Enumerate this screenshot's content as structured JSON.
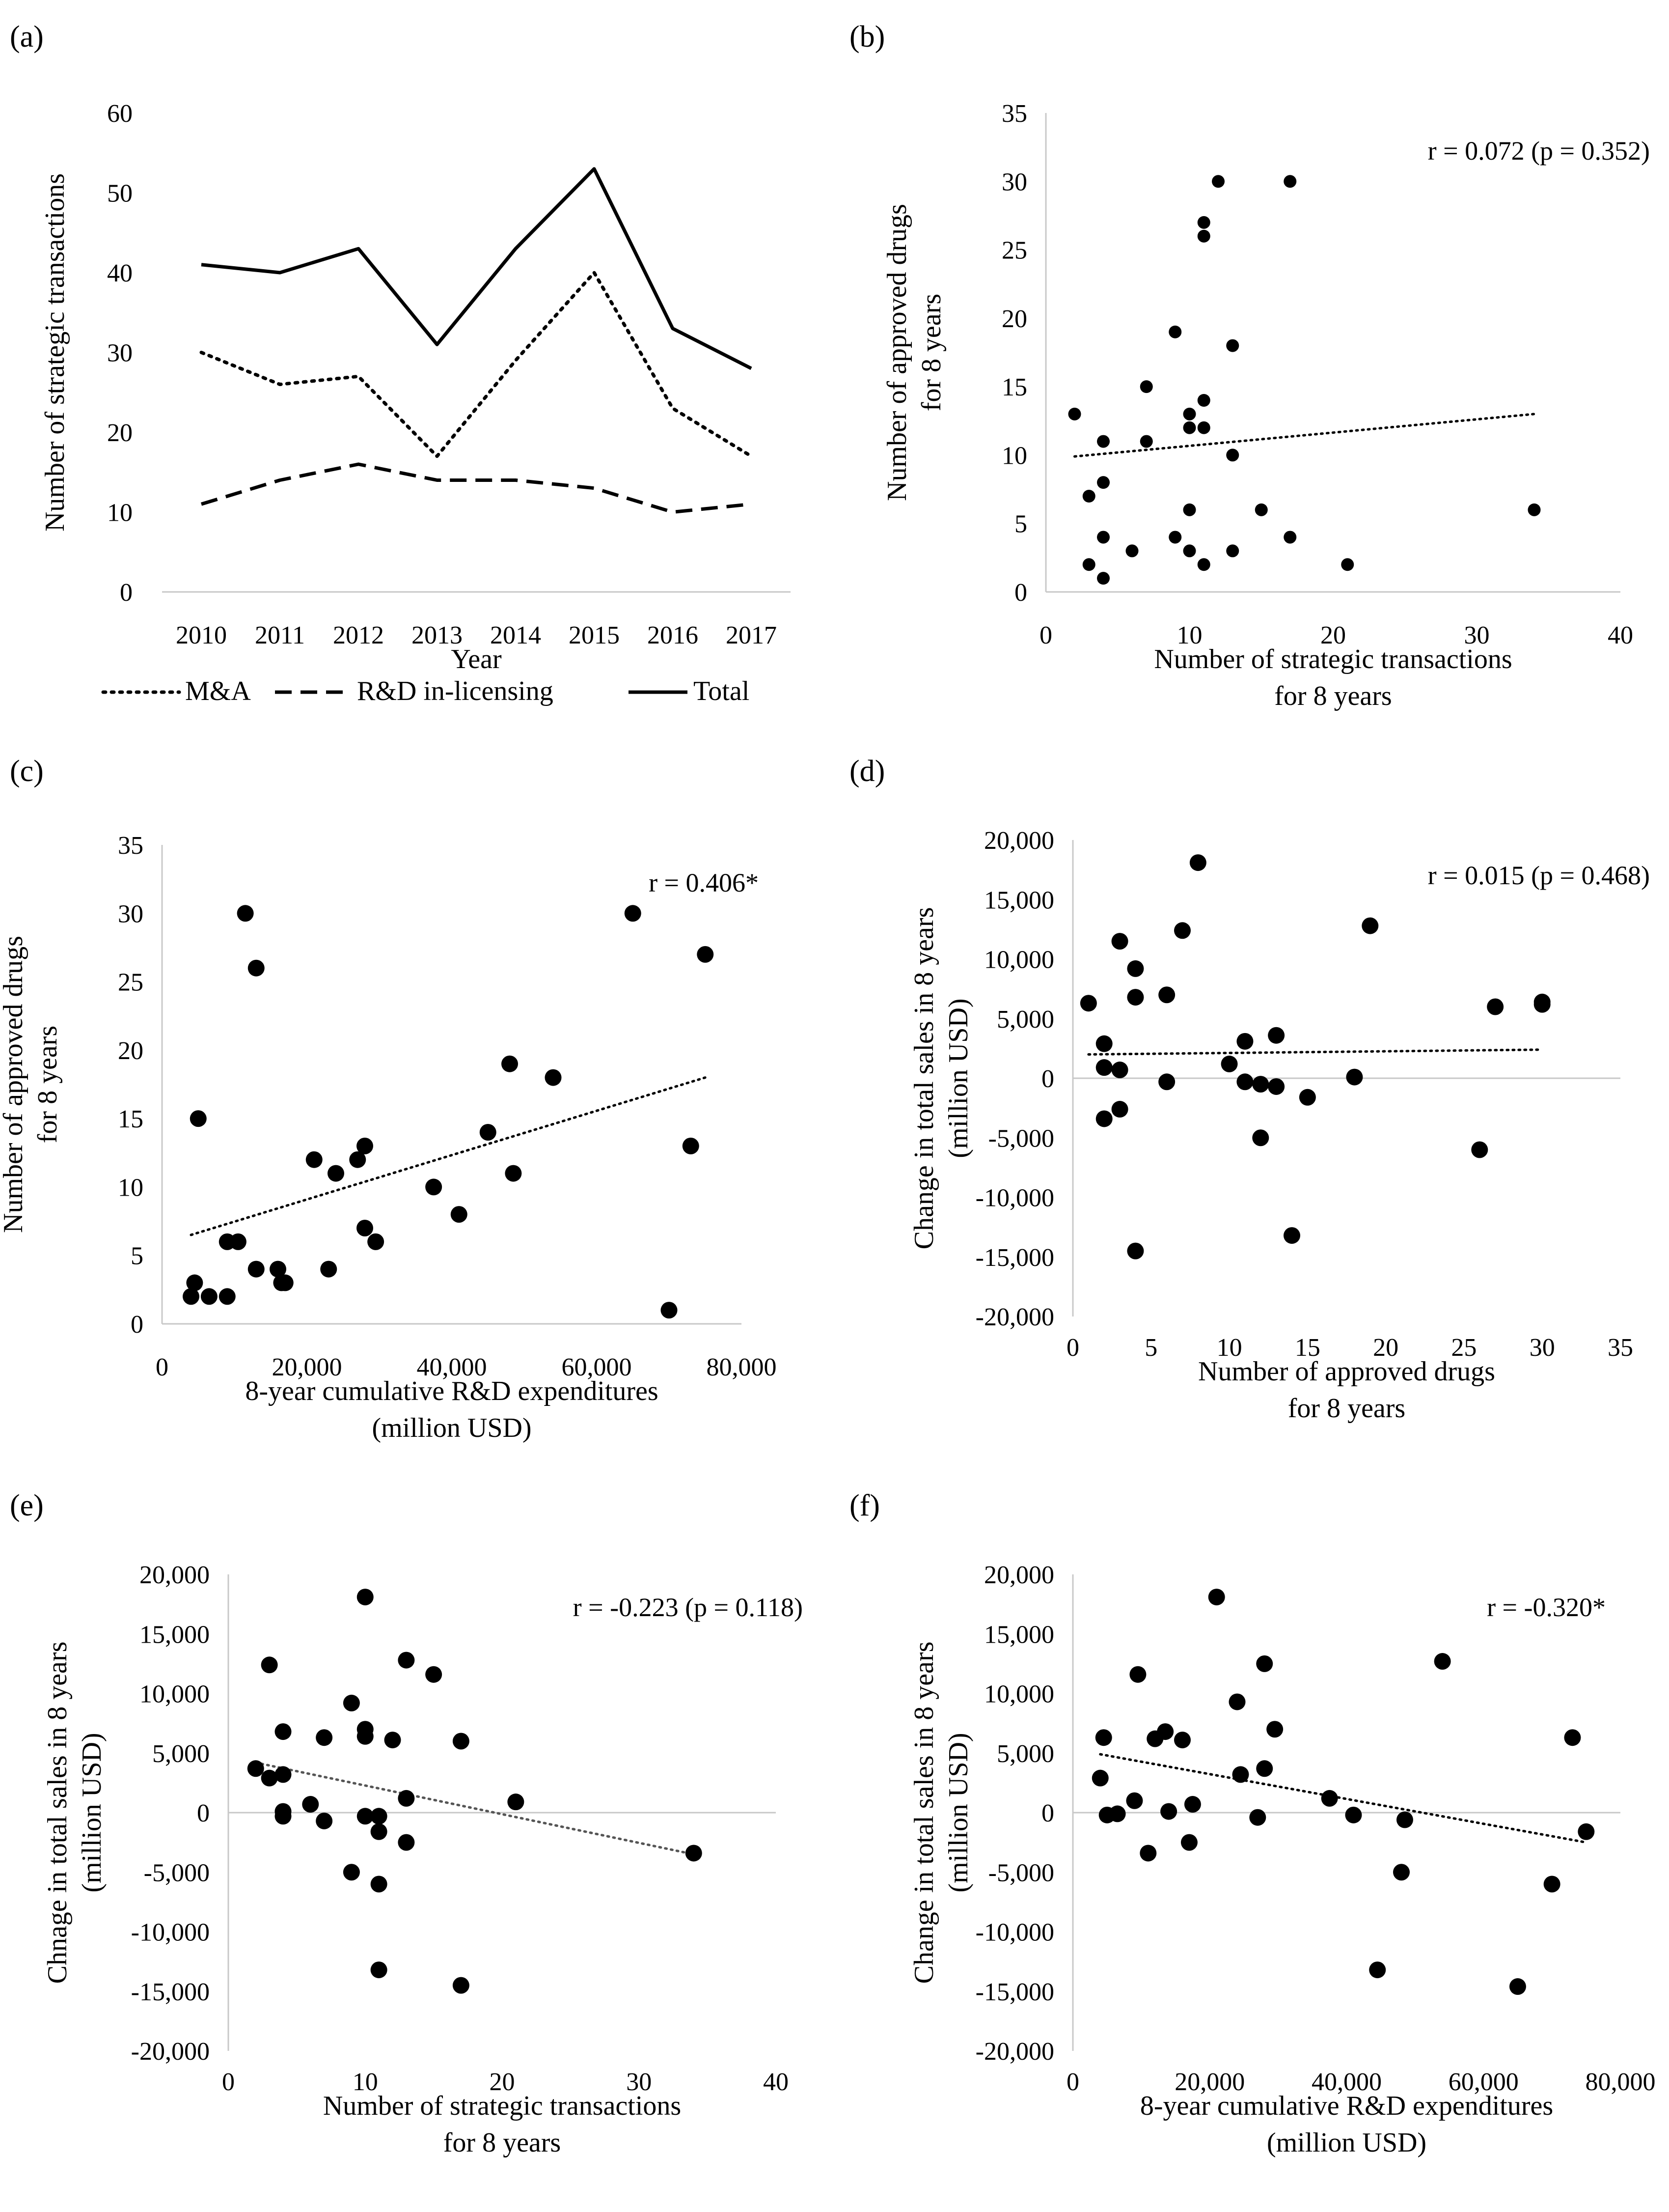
{
  "chart_data": [
    {
      "id": "a",
      "panel_label": "(a)",
      "type": "line",
      "title": "",
      "xlabel": "Year",
      "ylabel": "Number of strategic transactions",
      "categories": [
        "2010",
        "2011",
        "2012",
        "2013",
        "2014",
        "2015",
        "2016",
        "2017"
      ],
      "ylim": [
        0,
        60
      ],
      "yticks": [
        0,
        10,
        20,
        30,
        40,
        50,
        60
      ],
      "legend_position": "bottom",
      "grid": false,
      "series": [
        {
          "name": "M&A",
          "style": "dotted",
          "values": [
            30,
            26,
            27,
            17,
            29,
            40,
            23,
            17
          ]
        },
        {
          "name": "R&D in-licensing",
          "style": "dashed",
          "values": [
            11,
            14,
            16,
            14,
            14,
            13,
            10,
            11
          ]
        },
        {
          "name": "Total",
          "style": "solid",
          "values": [
            41,
            40,
            43,
            31,
            43,
            53,
            33,
            28
          ]
        }
      ]
    },
    {
      "id": "b",
      "panel_label": "(b)",
      "type": "scatter",
      "xlabel": [
        "Number of strategic transactions",
        "for 8 years"
      ],
      "ylabel": [
        "Number of approved drugs",
        "for 8 years"
      ],
      "xlim": [
        0,
        40
      ],
      "xticks": [
        0,
        10,
        20,
        30,
        40
      ],
      "ylim": [
        0,
        35
      ],
      "yticks": [
        0,
        5,
        10,
        15,
        20,
        25,
        30,
        35
      ],
      "annotation": "r = 0.072 (p = 0.352)",
      "trendline": {
        "x": [
          2,
          34
        ],
        "y": [
          9.9,
          13.0
        ]
      },
      "points": [
        [
          2,
          13
        ],
        [
          3,
          7
        ],
        [
          3,
          2
        ],
        [
          4,
          11
        ],
        [
          4,
          8
        ],
        [
          4,
          4
        ],
        [
          4,
          1
        ],
        [
          6,
          3
        ],
        [
          7,
          15
        ],
        [
          7,
          11
        ],
        [
          9,
          19
        ],
        [
          9,
          4
        ],
        [
          10,
          13
        ],
        [
          10,
          12
        ],
        [
          10,
          6
        ],
        [
          10,
          3
        ],
        [
          11,
          27
        ],
        [
          11,
          26
        ],
        [
          11,
          14
        ],
        [
          11,
          12
        ],
        [
          11,
          2
        ],
        [
          12,
          30
        ],
        [
          13,
          18
        ],
        [
          13,
          10
        ],
        [
          13,
          3
        ],
        [
          15,
          6
        ],
        [
          17,
          30
        ],
        [
          17,
          4
        ],
        [
          21,
          2
        ],
        [
          34,
          6
        ]
      ]
    },
    {
      "id": "c",
      "panel_label": "(c)",
      "type": "scatter",
      "xlabel": [
        "8-year cumulative R&D expenditures",
        "(million USD)"
      ],
      "ylabel": [
        "Number of approved drugs",
        "for 8 years"
      ],
      "xlim": [
        0,
        80000
      ],
      "xticks": [
        0,
        20000,
        40000,
        60000,
        80000
      ],
      "xtick_labels": [
        "0",
        "20,000",
        "40,000",
        "60,000",
        "80,000"
      ],
      "ylim": [
        0,
        35
      ],
      "yticks": [
        0,
        5,
        10,
        15,
        20,
        25,
        30,
        35
      ],
      "annotation": "r = 0.406*",
      "trendline": {
        "x": [
          4000,
          75000
        ],
        "y": [
          6.5,
          18.0
        ]
      },
      "points": [
        [
          4000,
          2
        ],
        [
          4500,
          3
        ],
        [
          5000,
          15
        ],
        [
          6500,
          2
        ],
        [
          9000,
          6
        ],
        [
          9000,
          2
        ],
        [
          10500,
          6
        ],
        [
          11500,
          30
        ],
        [
          13000,
          26
        ],
        [
          13000,
          4
        ],
        [
          16000,
          4
        ],
        [
          16500,
          3
        ],
        [
          17000,
          3
        ],
        [
          21000,
          12
        ],
        [
          23000,
          4
        ],
        [
          24000,
          11
        ],
        [
          27000,
          12
        ],
        [
          28000,
          13
        ],
        [
          28000,
          7
        ],
        [
          29500,
          6
        ],
        [
          37500,
          10
        ],
        [
          41000,
          8
        ],
        [
          45000,
          14
        ],
        [
          48000,
          19
        ],
        [
          48500,
          11
        ],
        [
          54000,
          18
        ],
        [
          65000,
          30
        ],
        [
          70000,
          1
        ],
        [
          73000,
          13
        ],
        [
          75000,
          27
        ]
      ]
    },
    {
      "id": "d",
      "panel_label": "(d)",
      "type": "scatter",
      "xlabel": [
        "Number of approved drugs",
        "for 8 years"
      ],
      "ylabel": [
        "Change in total sales in 8 years",
        "(million USD)"
      ],
      "xlim": [
        0,
        35
      ],
      "xticks": [
        0,
        5,
        10,
        15,
        20,
        25,
        30,
        35
      ],
      "ylim": [
        -20000,
        20000
      ],
      "yticks": [
        -20000,
        -15000,
        -10000,
        -5000,
        0,
        5000,
        10000,
        15000,
        20000
      ],
      "ytick_labels": [
        "-20,000",
        "-15,000",
        "-10,000",
        "-5,000",
        "0",
        "5,000",
        "10,000",
        "15,000",
        "20,000"
      ],
      "annotation": "r = 0.015 (p = 0.468)",
      "trendline": {
        "x": [
          1,
          30
        ],
        "y": [
          2000,
          2400
        ]
      },
      "points": [
        [
          1,
          6300
        ],
        [
          2,
          2900
        ],
        [
          2,
          900
        ],
        [
          2,
          -3400
        ],
        [
          3,
          11500
        ],
        [
          3,
          700
        ],
        [
          3,
          -2600
        ],
        [
          4,
          9200
        ],
        [
          4,
          6800
        ],
        [
          4,
          -14500
        ],
        [
          6,
          7000
        ],
        [
          6,
          -300
        ],
        [
          7,
          12400
        ],
        [
          8,
          18100
        ],
        [
          10,
          1200
        ],
        [
          11,
          3100
        ],
        [
          11,
          -300
        ],
        [
          12,
          -500
        ],
        [
          12,
          -5000
        ],
        [
          13,
          3600
        ],
        [
          13,
          -700
        ],
        [
          14,
          -13200
        ],
        [
          15,
          -1600
        ],
        [
          18,
          100
        ],
        [
          19,
          12800
        ],
        [
          26,
          -6000
        ],
        [
          27,
          6000
        ],
        [
          30,
          6400
        ],
        [
          30,
          6200
        ]
      ]
    },
    {
      "id": "e",
      "panel_label": "(e)",
      "type": "scatter",
      "xlabel": [
        "Number of strategic transactions",
        "for 8 years"
      ],
      "ylabel": [
        "Chnage in total sales in 8 years",
        "(million USD)"
      ],
      "xlim": [
        0,
        40
      ],
      "xticks": [
        0,
        10,
        20,
        30,
        40
      ],
      "ylim": [
        -20000,
        20000
      ],
      "yticks": [
        -20000,
        -15000,
        -10000,
        -5000,
        0,
        5000,
        10000,
        15000,
        20000
      ],
      "ytick_labels": [
        "-20,000",
        "-15,000",
        "-10,000",
        "-5,000",
        "0",
        "5,000",
        "10,000",
        "15,000",
        "20,000"
      ],
      "annotation": "r = -0.223 (p = 0.118)",
      "trendline": {
        "x": [
          2,
          34
        ],
        "y": [
          4200,
          -3500
        ]
      },
      "points": [
        [
          2,
          3700
        ],
        [
          3,
          12400
        ],
        [
          3,
          2900
        ],
        [
          4,
          6800
        ],
        [
          4,
          3200
        ],
        [
          4,
          100
        ],
        [
          4,
          -300
        ],
        [
          6,
          700
        ],
        [
          7,
          6300
        ],
        [
          7,
          -700
        ],
        [
          9,
          9200
        ],
        [
          9,
          -5000
        ],
        [
          10,
          18100
        ],
        [
          10,
          7000
        ],
        [
          10,
          6400
        ],
        [
          10,
          -300
        ],
        [
          11,
          -300
        ],
        [
          11,
          -1600
        ],
        [
          11,
          -6000
        ],
        [
          11,
          -13200
        ],
        [
          12,
          6100
        ],
        [
          13,
          12800
        ],
        [
          13,
          1200
        ],
        [
          13,
          -2500
        ],
        [
          15,
          11600
        ],
        [
          17,
          6000
        ],
        [
          17,
          -14500
        ],
        [
          21,
          900
        ],
        [
          34,
          -3400
        ]
      ]
    },
    {
      "id": "f",
      "panel_label": "(f)",
      "type": "scatter",
      "xlabel": [
        "8-year cumulative R&D expenditures",
        "(million USD)"
      ],
      "ylabel": [
        "Change in total sales in 8 years",
        "(million USD)"
      ],
      "xlim": [
        0,
        80000
      ],
      "xticks": [
        0,
        20000,
        40000,
        60000,
        80000
      ],
      "xtick_labels": [
        "0",
        "20,000",
        "40,000",
        "60,000",
        "80,000"
      ],
      "ylim": [
        -20000,
        20000
      ],
      "yticks": [
        -20000,
        -15000,
        -10000,
        -5000,
        0,
        5000,
        10000,
        15000,
        20000
      ],
      "ytick_labels": [
        "-20,000",
        "-15,000",
        "-10,000",
        "-5,000",
        "0",
        "5,000",
        "10,000",
        "15,000",
        "20,000"
      ],
      "annotation": "r = -0.320*",
      "trendline": {
        "x": [
          4000,
          75000
        ],
        "y": [
          4900,
          -2500
        ]
      },
      "points": [
        [
          4000,
          2900
        ],
        [
          4500,
          6300
        ],
        [
          5000,
          -200
        ],
        [
          6500,
          -100
        ],
        [
          9000,
          1000
        ],
        [
          9500,
          11600
        ],
        [
          11000,
          -3400
        ],
        [
          12000,
          6200
        ],
        [
          13500,
          6800
        ],
        [
          14000,
          100
        ],
        [
          16000,
          6100
        ],
        [
          17000,
          -2500
        ],
        [
          17500,
          700
        ],
        [
          21000,
          18100
        ],
        [
          24000,
          9300
        ],
        [
          24500,
          3200
        ],
        [
          27000,
          -400
        ],
        [
          28000,
          12500
        ],
        [
          28000,
          3700
        ],
        [
          29500,
          7000
        ],
        [
          37500,
          1200
        ],
        [
          41000,
          -200
        ],
        [
          44500,
          -13200
        ],
        [
          48000,
          -5000
        ],
        [
          48500,
          -600
        ],
        [
          54000,
          12700
        ],
        [
          65000,
          -14600
        ],
        [
          70000,
          -6000
        ],
        [
          73000,
          6300
        ],
        [
          75000,
          -1600
        ]
      ]
    }
  ]
}
